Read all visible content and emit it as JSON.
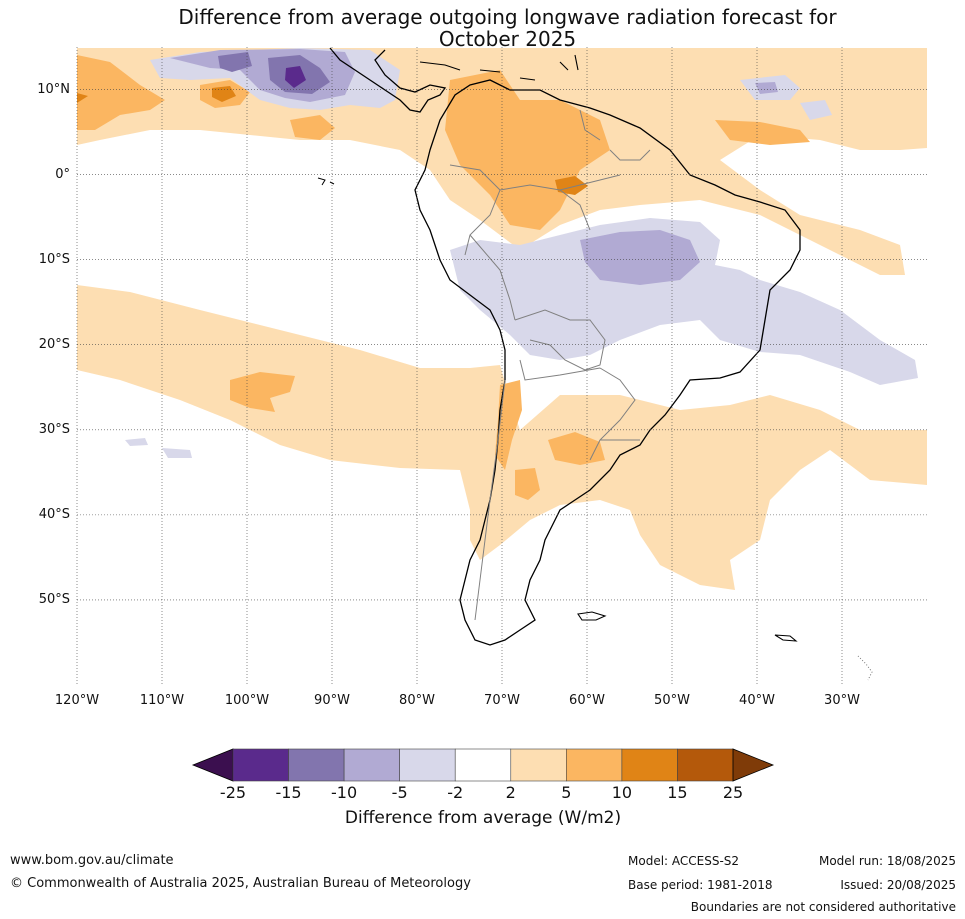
{
  "title": {
    "line1": "Difference from average outgoing longwave radiation forecast for",
    "line2": "October 2025"
  },
  "map": {
    "lat_labels": [
      "10°N",
      "0°",
      "10°S",
      "20°S",
      "30°S",
      "40°S",
      "50°S"
    ],
    "lon_labels": [
      "120°W",
      "110°W",
      "100°W",
      "90°W",
      "80°W",
      "70°W",
      "60°W",
      "50°W",
      "40°W",
      "30°W"
    ],
    "lat_values": [
      10,
      0,
      -10,
      -20,
      -30,
      -40,
      -50
    ],
    "lon_values": [
      -120,
      -110,
      -100,
      -90,
      -80,
      -70,
      -60,
      -50,
      -40,
      -30
    ],
    "lat_range": [
      -60,
      15
    ],
    "lon_range": [
      -120,
      -20
    ],
    "grid": "dotted",
    "colors": {
      "land_outline": "#000000",
      "internal_borders": "#808080"
    }
  },
  "colorbar": {
    "ticks": [
      "-25",
      "-15",
      "-10",
      "-5",
      "-2",
      "2",
      "5",
      "10",
      "15",
      "25"
    ],
    "colors": [
      "#3b0f4f",
      "#5a2a8c",
      "#8275ae",
      "#b1aad3",
      "#d8d8ea",
      "#ffffff",
      "#fddeb2",
      "#fbb661",
      "#e08416",
      "#b4590b",
      "#7f3b08"
    ],
    "label": "Difference from average (W/m2)"
  },
  "footer": {
    "website": "www.bom.gov.au/climate",
    "copyright": "© Commonwealth of Australia 2025, Australian Bureau of Meteorology",
    "model": "Model: ACCESS-S2",
    "base_period": "Base period: 1981-2018",
    "model_run": "Model run: 18/08/2025",
    "issued": "Issued: 20/08/2025",
    "disclaimer": "Boundaries are not considered authoritative"
  }
}
